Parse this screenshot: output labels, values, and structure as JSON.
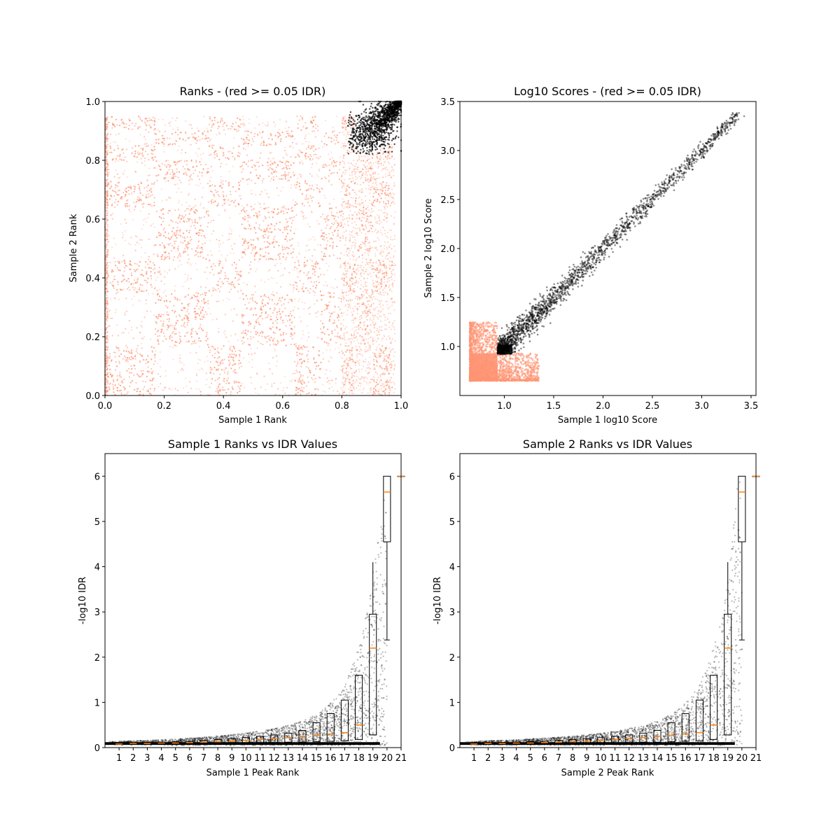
{
  "colors": {
    "low_idr": "#ff9473",
    "high_idr": "#000000",
    "median": "#ff7f0e",
    "axes": "#000000"
  },
  "chart_data": [
    {
      "type": "scatter",
      "title": "Ranks - (red >= 0.05 IDR)",
      "xlabel": "Sample 1 Rank",
      "ylabel": "Sample 2 Rank",
      "xlim": [
        0,
        1
      ],
      "ylim": [
        0,
        1
      ],
      "xticks": [
        "0.0",
        "0.2",
        "0.4",
        "0.6",
        "0.8",
        "1.0"
      ],
      "yticks": [
        "0.0",
        "0.2",
        "0.4",
        "0.6",
        "0.8",
        "1.0"
      ],
      "series": [
        {
          "color": "#ff9473",
          "x_range": [
            0.0,
            0.97
          ],
          "y_range": [
            0.0,
            0.95
          ],
          "block_edges": [
            0.0,
            0.17,
            0.35,
            0.46,
            0.64,
            0.73,
            0.8,
            0.85,
            0.9,
            0.95
          ]
        },
        {
          "color": "#000000",
          "center": [
            0.9,
            0.9
          ],
          "tip": [
            1.0,
            1.0
          ]
        }
      ]
    },
    {
      "type": "scatter",
      "title": "Log10 Scores - (red >= 0.05 IDR)",
      "xlabel": "Sample 1 log10 Score",
      "ylabel": "Sample 2 log10 Score",
      "xlim": [
        0.55,
        3.55
      ],
      "ylim": [
        0.5,
        3.5
      ],
      "xticks": [
        "1.0",
        "1.5",
        "2.0",
        "2.5",
        "3.0",
        "3.5"
      ],
      "yticks": [
        "1.0",
        "1.5",
        "2.0",
        "2.5",
        "3.0",
        "3.5"
      ],
      "series": [
        {
          "color": "#ff9473",
          "x_range": [
            0.65,
            1.35
          ],
          "y_range": [
            0.65,
            1.25
          ]
        },
        {
          "color": "#000000",
          "x_range": [
            0.93,
            3.4
          ],
          "y_range": [
            0.92,
            3.37
          ]
        }
      ]
    },
    {
      "type": "box",
      "title": "Sample 1 Ranks vs IDR Values",
      "xlabel": "Sample 1 Peak Rank",
      "ylabel": "-log10 IDR",
      "xlim": [
        0,
        21
      ],
      "ylim": [
        0,
        6.5
      ],
      "categories": [
        "1",
        "2",
        "3",
        "4",
        "5",
        "6",
        "7",
        "8",
        "9",
        "10",
        "11",
        "12",
        "13",
        "14",
        "15",
        "16",
        "17",
        "18",
        "19",
        "20",
        "21"
      ],
      "yticks": [
        "0",
        "1",
        "2",
        "3",
        "4",
        "5",
        "6"
      ],
      "boxes": [
        {
          "q1": 0.07,
          "median": 0.08,
          "q3": 0.09
        },
        {
          "q1": 0.08,
          "median": 0.09,
          "q3": 0.1
        },
        {
          "q1": 0.08,
          "median": 0.09,
          "q3": 0.11
        },
        {
          "q1": 0.08,
          "median": 0.1,
          "q3": 0.12
        },
        {
          "q1": 0.09,
          "median": 0.1,
          "q3": 0.13
        },
        {
          "q1": 0.09,
          "median": 0.11,
          "q3": 0.14
        },
        {
          "q1": 0.1,
          "median": 0.12,
          "q3": 0.16
        },
        {
          "q1": 0.1,
          "median": 0.13,
          "q3": 0.18
        },
        {
          "q1": 0.1,
          "median": 0.14,
          "q3": 0.2
        },
        {
          "q1": 0.1,
          "median": 0.16,
          "q3": 0.22
        },
        {
          "q1": 0.11,
          "median": 0.18,
          "q3": 0.25
        },
        {
          "q1": 0.11,
          "median": 0.2,
          "q3": 0.28
        },
        {
          "q1": 0.12,
          "median": 0.22,
          "q3": 0.32
        },
        {
          "q1": 0.12,
          "median": 0.25,
          "q3": 0.38
        },
        {
          "q1": 0.13,
          "median": 0.27,
          "q3": 0.55
        },
        {
          "q1": 0.14,
          "median": 0.3,
          "q3": 0.75
        },
        {
          "q1": 0.15,
          "median": 0.33,
          "q3": 1.05
        },
        {
          "q1": 0.18,
          "median": 0.5,
          "q3": 1.6
        },
        {
          "q1": 0.28,
          "median": 2.2,
          "q3": 2.95
        },
        {
          "q1": 4.55,
          "median": 5.65,
          "q3": 6.0
        },
        {
          "q1": 6.0,
          "median": 6.0,
          "q3": 6.0
        }
      ]
    },
    {
      "type": "box",
      "title": "Sample 2 Ranks vs IDR Values",
      "xlabel": "Sample 2 Peak Rank",
      "ylabel": "-log10 IDR",
      "xlim": [
        0,
        21
      ],
      "ylim": [
        0,
        6.5
      ],
      "categories": [
        "1",
        "2",
        "3",
        "4",
        "5",
        "6",
        "7",
        "8",
        "9",
        "10",
        "11",
        "12",
        "13",
        "14",
        "15",
        "16",
        "17",
        "18",
        "19",
        "20",
        "21"
      ],
      "yticks": [
        "0",
        "1",
        "2",
        "3",
        "4",
        "5",
        "6"
      ],
      "boxes": [
        {
          "q1": 0.07,
          "median": 0.08,
          "q3": 0.09
        },
        {
          "q1": 0.08,
          "median": 0.09,
          "q3": 0.1
        },
        {
          "q1": 0.08,
          "median": 0.09,
          "q3": 0.11
        },
        {
          "q1": 0.08,
          "median": 0.1,
          "q3": 0.12
        },
        {
          "q1": 0.09,
          "median": 0.1,
          "q3": 0.13
        },
        {
          "q1": 0.09,
          "median": 0.11,
          "q3": 0.14
        },
        {
          "q1": 0.1,
          "median": 0.12,
          "q3": 0.16
        },
        {
          "q1": 0.1,
          "median": 0.13,
          "q3": 0.18
        },
        {
          "q1": 0.1,
          "median": 0.14,
          "q3": 0.2
        },
        {
          "q1": 0.1,
          "median": 0.16,
          "q3": 0.22
        },
        {
          "q1": 0.11,
          "median": 0.18,
          "q3": 0.25
        },
        {
          "q1": 0.11,
          "median": 0.2,
          "q3": 0.28
        },
        {
          "q1": 0.12,
          "median": 0.22,
          "q3": 0.32
        },
        {
          "q1": 0.12,
          "median": 0.25,
          "q3": 0.38
        },
        {
          "q1": 0.13,
          "median": 0.27,
          "q3": 0.55
        },
        {
          "q1": 0.14,
          "median": 0.3,
          "q3": 0.75
        },
        {
          "q1": 0.15,
          "median": 0.33,
          "q3": 1.05
        },
        {
          "q1": 0.18,
          "median": 0.5,
          "q3": 1.6
        },
        {
          "q1": 0.28,
          "median": 2.2,
          "q3": 2.95
        },
        {
          "q1": 4.55,
          "median": 5.65,
          "q3": 6.0
        },
        {
          "q1": 6.0,
          "median": 6.0,
          "q3": 6.0
        }
      ]
    }
  ]
}
